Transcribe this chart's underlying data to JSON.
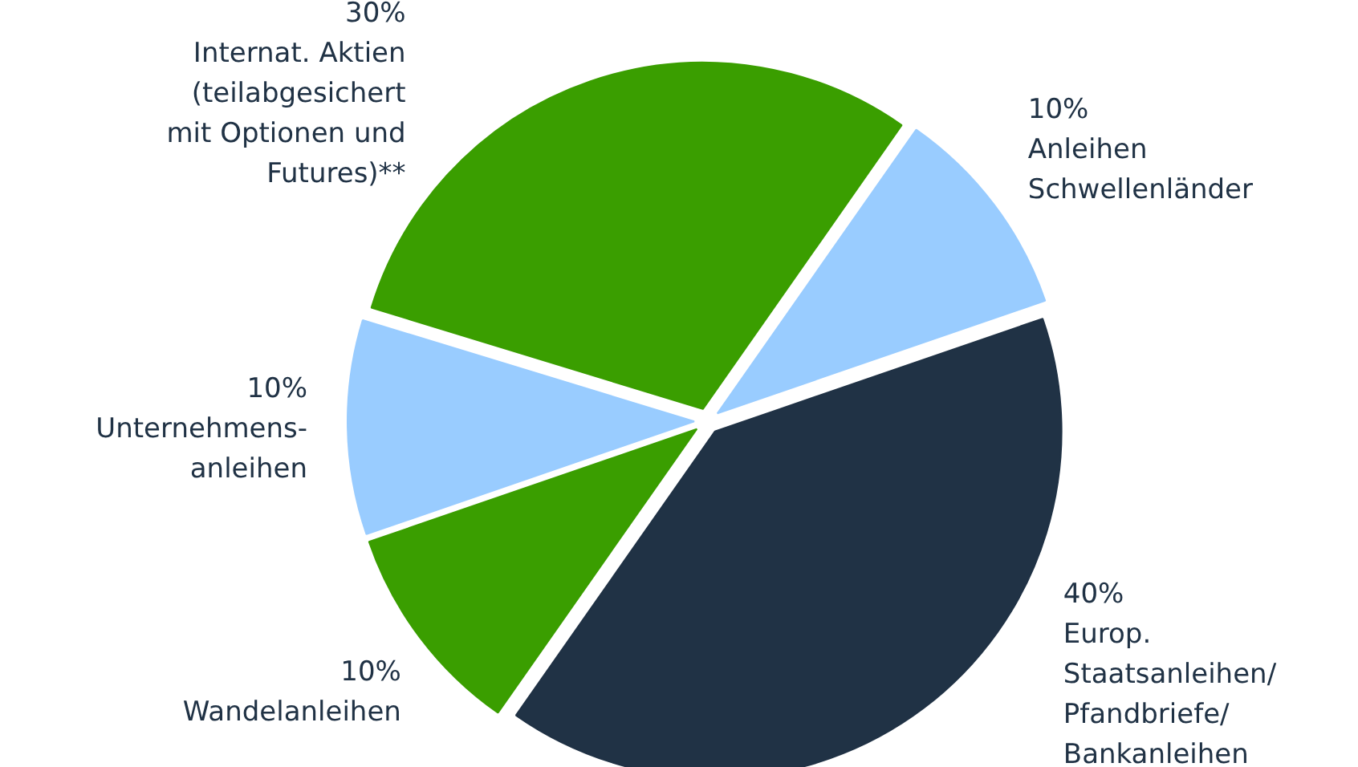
{
  "chart_data": {
    "type": "pie",
    "categories": [
      "Anleihen\nSchwellenländer",
      "Europ.\nStaatsanleihen/\nPfandbriefe/\nBankanleihen",
      "Wandelanleihen",
      "Unternehmens-\nanleihen",
      "Internat. Aktien\n(teilabgesichert\nmit Optionen und\nFutures)**"
    ],
    "values": [
      10,
      40,
      10,
      10,
      30
    ],
    "colors": [
      "#99ccff",
      "#203245",
      "#3a9e00",
      "#99ccff",
      "#3a9e00"
    ],
    "value_labels": [
      "10%",
      "40%",
      "10%",
      "10%",
      "30%"
    ]
  }
}
